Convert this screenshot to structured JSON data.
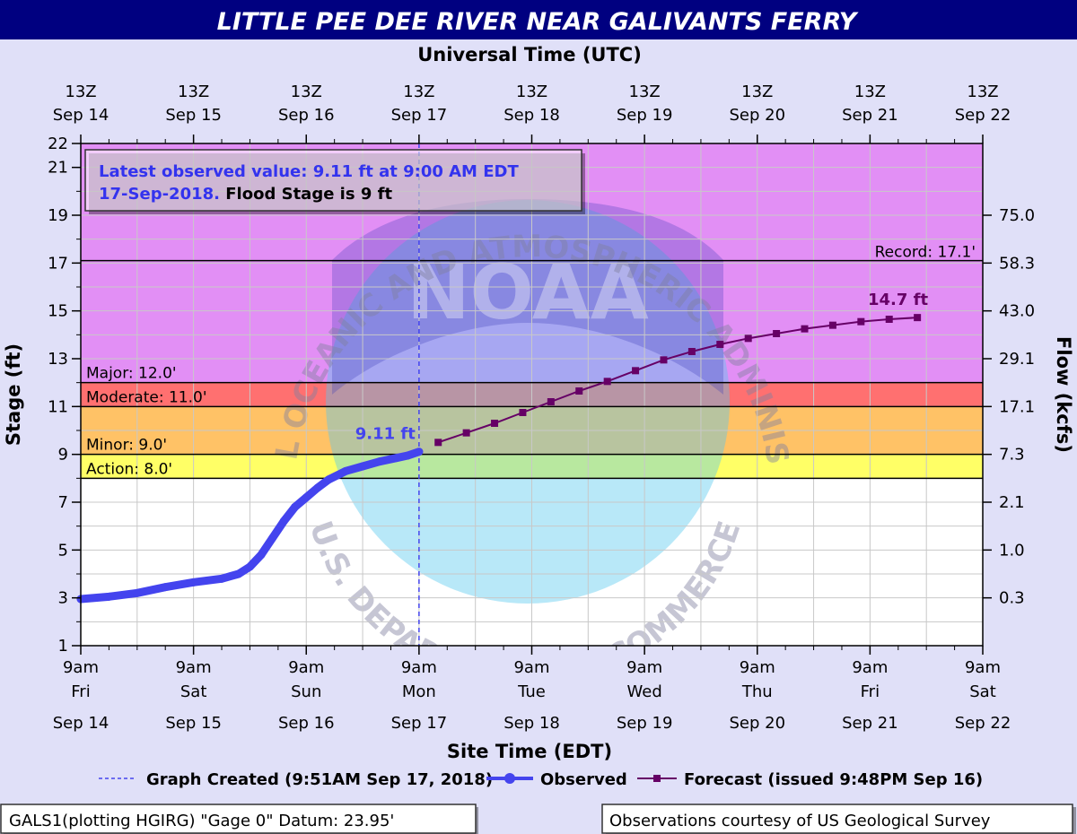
{
  "chart_data": {
    "type": "line",
    "title": "LITTLE PEE DEE RIVER NEAR GALIVANTS FERRY",
    "top_axis_title": "Universal Time (UTC)",
    "top_ticks": [
      {
        "line1": "13Z",
        "line2": "Sep 14"
      },
      {
        "line1": "13Z",
        "line2": "Sep 15"
      },
      {
        "line1": "13Z",
        "line2": "Sep 16"
      },
      {
        "line1": "13Z",
        "line2": "Sep 17"
      },
      {
        "line1": "13Z",
        "line2": "Sep 18"
      },
      {
        "line1": "13Z",
        "line2": "Sep 19"
      },
      {
        "line1": "13Z",
        "line2": "Sep 20"
      },
      {
        "line1": "13Z",
        "line2": "Sep 21"
      },
      {
        "line1": "13Z",
        "line2": "Sep 22"
      }
    ],
    "bottom_ticks": [
      {
        "line1": "9am",
        "line2": "Fri",
        "line3": "Sep 14"
      },
      {
        "line1": "9am",
        "line2": "Sat",
        "line3": "Sep 15"
      },
      {
        "line1": "9am",
        "line2": "Sun",
        "line3": "Sep 16"
      },
      {
        "line1": "9am",
        "line2": "Mon",
        "line3": "Sep 17"
      },
      {
        "line1": "9am",
        "line2": "Tue",
        "line3": "Sep 18"
      },
      {
        "line1": "9am",
        "line2": "Wed",
        "line3": "Sep 19"
      },
      {
        "line1": "9am",
        "line2": "Thu",
        "line3": "Sep 20"
      },
      {
        "line1": "9am",
        "line2": "Fri",
        "line3": "Sep 21"
      },
      {
        "line1": "9am",
        "line2": "Sat",
        "line3": "Sep 22"
      }
    ],
    "xlabel": "Site Time (EDT)",
    "ylabel": "Stage (ft)",
    "y2label": "Flow (kcfs)",
    "xlim_days": [
      0,
      8
    ],
    "ylim": [
      1,
      22
    ],
    "y_ticks": [
      1,
      3,
      5,
      7,
      9,
      11,
      13,
      15,
      17,
      19,
      21,
      22
    ],
    "flow_ticks": [
      {
        "stage": 19,
        "label": "75.0"
      },
      {
        "stage": 17,
        "label": "58.3"
      },
      {
        "stage": 15,
        "label": "43.0"
      },
      {
        "stage": 13,
        "label": "29.1"
      },
      {
        "stage": 11,
        "label": "17.1"
      },
      {
        "stage": 9,
        "label": "7.3"
      },
      {
        "stage": 7,
        "label": "2.1"
      },
      {
        "stage": 5,
        "label": "1.0"
      },
      {
        "stage": 3,
        "label": "0.3"
      }
    ],
    "grid": true,
    "flood_categories": [
      {
        "name": "Action",
        "label": "Action: 8.0'",
        "from": 8,
        "to": 9,
        "color": "#ffff66"
      },
      {
        "name": "Minor",
        "label": "Minor: 9.0'",
        "from": 9,
        "to": 11,
        "color": "#ffc266"
      },
      {
        "name": "Moderate",
        "label": "Moderate: 11.0'",
        "from": 11,
        "to": 12,
        "color": "#ff7070"
      },
      {
        "name": "Major",
        "label": "Major: 12.0'",
        "from": 12,
        "to": 22,
        "color": "#e28ff5"
      }
    ],
    "record": {
      "label": "Record: 17.1'",
      "value": 17.1
    },
    "info_box": {
      "line1_blue": "Latest observed value: 9.11 ft at 9:00 AM EDT",
      "line2_blue": "17-Sep-2018.",
      "line2_black": " Flood Stage is 9 ft"
    },
    "observed": {
      "name": "Observed",
      "color": "#4444ee",
      "peak_label": "9.11 ft",
      "points": [
        [
          0.0,
          2.95
        ],
        [
          0.25,
          3.05
        ],
        [
          0.5,
          3.2
        ],
        [
          0.75,
          3.45
        ],
        [
          1.0,
          3.65
        ],
        [
          1.25,
          3.8
        ],
        [
          1.4,
          4.0
        ],
        [
          1.5,
          4.3
        ],
        [
          1.6,
          4.8
        ],
        [
          1.7,
          5.5
        ],
        [
          1.8,
          6.2
        ],
        [
          1.9,
          6.8
        ],
        [
          2.0,
          7.2
        ],
        [
          2.1,
          7.6
        ],
        [
          2.2,
          7.95
        ],
        [
          2.35,
          8.3
        ],
        [
          2.5,
          8.5
        ],
        [
          2.65,
          8.7
        ],
        [
          2.8,
          8.85
        ],
        [
          2.9,
          8.95
        ],
        [
          3.0,
          9.11
        ]
      ]
    },
    "forecast": {
      "name": "Forecast (issued 9:48PM Sep 16)",
      "color": "#660066",
      "peak_label": "14.7 ft",
      "points": [
        [
          3.17,
          9.5
        ],
        [
          3.42,
          9.9
        ],
        [
          3.67,
          10.3
        ],
        [
          3.92,
          10.75
        ],
        [
          4.17,
          11.2
        ],
        [
          4.42,
          11.65
        ],
        [
          4.67,
          12.05
        ],
        [
          4.92,
          12.5
        ],
        [
          5.17,
          12.95
        ],
        [
          5.42,
          13.3
        ],
        [
          5.67,
          13.6
        ],
        [
          5.92,
          13.85
        ],
        [
          6.17,
          14.05
        ],
        [
          6.42,
          14.25
        ],
        [
          6.67,
          14.4
        ],
        [
          6.92,
          14.55
        ],
        [
          7.17,
          14.65
        ],
        [
          7.42,
          14.72
        ]
      ]
    },
    "created_line": {
      "x": 3.0,
      "color": "#4444ee"
    },
    "legend": {
      "created": "Graph Created (9:51AM Sep 17, 2018)",
      "observed": "Observed",
      "forecast": "Forecast (issued 9:48PM Sep 16)"
    },
    "watermark": {
      "logo": "NOAA",
      "top_arc": "NATIONAL OCEANIC AND ATMOSPHERIC ADMINISTRATION",
      "bottom_arc": "U.S. DEPARTMENT OF COMMERCE"
    }
  },
  "footer": {
    "left": "GALS1(plotting HGIRG) \"Gage 0\" Datum: 23.95'",
    "right": "Observations courtesy of US Geological Survey"
  }
}
